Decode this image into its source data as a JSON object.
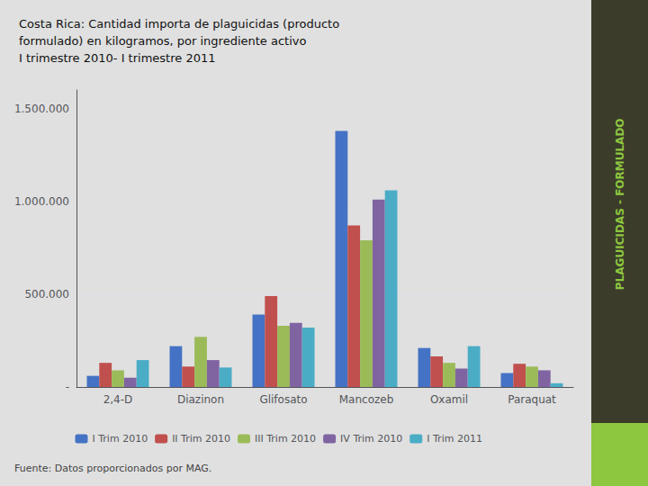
{
  "chart_data": {
    "type": "bar",
    "title": "Costa Rica: Cantidad importa de plaguicidas (producto\nformulado) en kilogramos, por ingrediente activo\nI trimestre 2010- I trimestre 2011",
    "annotations": [
      "Fuente: Datos proporcionados por MAG.",
      "PLAGUICIDAS - FORMULADO"
    ],
    "categories": [
      "2,4-D",
      "Diazinon",
      "Glifosato",
      "Mancozeb",
      "Oxamil",
      "Paraquat"
    ],
    "series": [
      {
        "name": "I Trim 2010",
        "color": "#4472C4",
        "values": [
          60000,
          220000,
          390000,
          1380000,
          210000,
          75000
        ]
      },
      {
        "name": "II Trim 2010",
        "color": "#C0504D",
        "values": [
          130000,
          110000,
          490000,
          870000,
          165000,
          125000
        ]
      },
      {
        "name": "III Trim 2010",
        "color": "#9BBB59",
        "values": [
          90000,
          270000,
          330000,
          790000,
          130000,
          110000
        ]
      },
      {
        "name": "IV Trim 2010",
        "color": "#8064A2",
        "values": [
          50000,
          145000,
          345000,
          1010000,
          100000,
          90000
        ]
      },
      {
        "name": "I Trim 2011",
        "color": "#4BACC6",
        "values": [
          145000,
          105000,
          320000,
          1060000,
          220000,
          20000
        ]
      }
    ],
    "ylim": [
      0,
      1600000
    ],
    "yticks": [
      {
        "value": 0,
        "label": "-"
      },
      {
        "value": 500000,
        "label": "500.000"
      },
      {
        "value": 1000000,
        "label": "1.000.000"
      },
      {
        "value": 1500000,
        "label": "1.500.000"
      }
    ],
    "grid": true,
    "legend": "bottom"
  }
}
